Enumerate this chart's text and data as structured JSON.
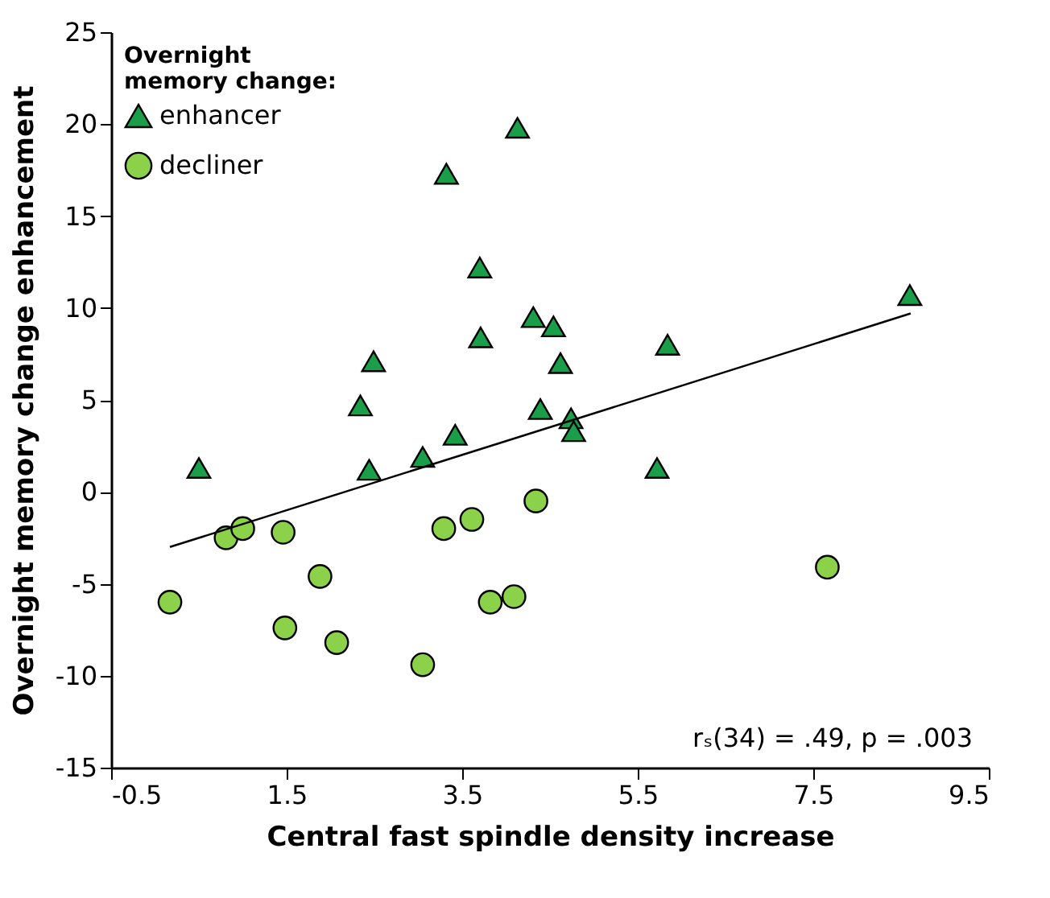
{
  "chart_data": {
    "type": "scatter",
    "xlabel": "Central fast spindle density increase",
    "ylabel": "Overnight memory change enhancement",
    "legend_title": "Overnight\nmemory change:",
    "legend": "top left",
    "xlim": [
      -0.5,
      9.5
    ],
    "xticks": [
      -0.5,
      1.5,
      3.5,
      5.5,
      7.5,
      9.5
    ],
    "ylim": [
      -15,
      25
    ],
    "yticks": [
      -15,
      -10,
      -5,
      0,
      5,
      10,
      15,
      20,
      25
    ],
    "grid": false,
    "annotations": [
      "rₛ(34) = .49, p = .003"
    ],
    "series": [
      {
        "name": "enhancer",
        "color": "#1a9e4a",
        "marker": "triangle",
        "x": [
          0.5,
          2.34,
          2.49,
          2.44,
          3.05,
          3.42,
          3.32,
          4.13,
          3.7,
          3.71,
          4.31,
          4.54,
          4.62,
          4.39,
          4.74,
          4.77,
          5.84,
          8.6,
          5.72
        ],
        "values": [
          1.3,
          4.7,
          7.1,
          1.2,
          1.9,
          3.1,
          17.3,
          19.8,
          12.2,
          8.4,
          9.5,
          9.0,
          7.0,
          4.5,
          4.0,
          3.3,
          8.0,
          10.7,
          1.3
        ]
      },
      {
        "name": "decliner",
        "color": "#8cd14a",
        "marker": "circle",
        "x": [
          0.17,
          0.81,
          1.0,
          1.46,
          1.88,
          1.48,
          2.07,
          3.05,
          3.29,
          3.61,
          4.34,
          3.82,
          4.09,
          7.66
        ],
        "values": [
          -6.0,
          -2.5,
          -2.0,
          -2.2,
          -4.6,
          -7.4,
          -8.2,
          -9.4,
          -2.0,
          -1.5,
          -0.5,
          -6.0,
          -5.7,
          -4.1
        ]
      },
      {
        "type": "line",
        "color": "#000000",
        "x": [
          0.17,
          8.61
        ],
        "values": [
          -3.0,
          9.7
        ]
      }
    ]
  }
}
